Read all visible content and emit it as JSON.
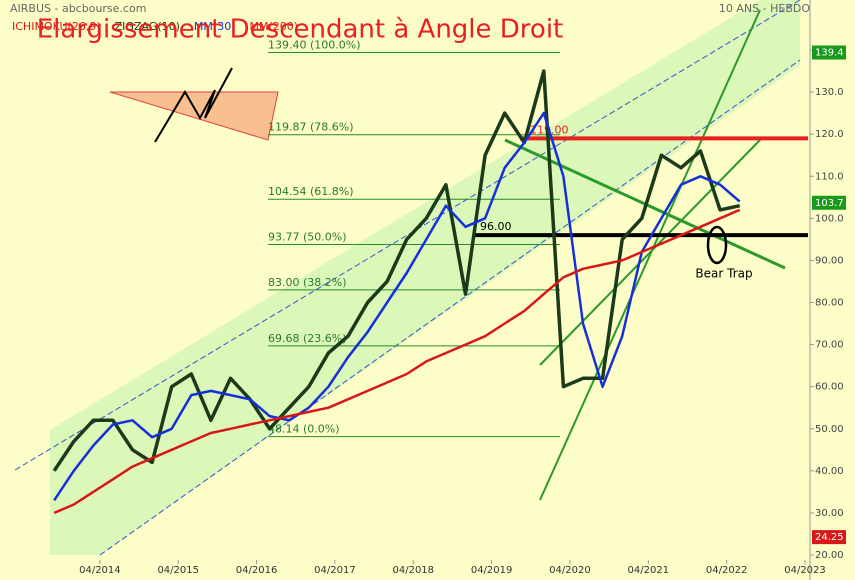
{
  "chart_data": {
    "type": "line",
    "title": "Elargissement Descendant à Angle Droit",
    "source": "AIRBUS - abcbourse.com",
    "period": "10 ANS - HEBDO",
    "background": "#fdfdc8",
    "x": [
      "2013-09",
      "2013-12",
      "2014-03",
      "2014-06",
      "2014-09",
      "2014-12",
      "2015-03",
      "2015-06",
      "2015-09",
      "2015-12",
      "2016-03",
      "2016-06",
      "2016-09",
      "2016-12",
      "2017-03",
      "2017-06",
      "2017-09",
      "2017-12",
      "2018-03",
      "2018-06",
      "2018-09",
      "2018-12",
      "2019-03",
      "2019-06",
      "2019-09",
      "2019-12",
      "2020-03",
      "2020-06",
      "2020-09",
      "2020-12",
      "2021-03",
      "2021-06",
      "2021-09",
      "2021-12",
      "2022-03",
      "2022-06"
    ],
    "xlim": [
      "2013-03",
      "2023-04"
    ],
    "xticks": [
      "04/2014",
      "04/2015",
      "04/2016",
      "04/2017",
      "04/2018",
      "04/2019",
      "04/2020",
      "04/2021",
      "04/2022",
      "04/2023"
    ],
    "ylim": [
      20,
      140
    ],
    "yticks": [
      {
        "value": 20,
        "label": "20.00"
      },
      {
        "value": 30,
        "label": "30.00"
      },
      {
        "value": 40,
        "label": "40.00"
      },
      {
        "value": 50,
        "label": "50.00"
      },
      {
        "value": 60,
        "label": "60.00"
      },
      {
        "value": 70,
        "label": "70.00"
      },
      {
        "value": 80,
        "label": "80.00"
      },
      {
        "value": 90,
        "label": "90.00"
      },
      {
        "value": 100,
        "label": "100.0"
      },
      {
        "value": 110,
        "label": "110.0"
      },
      {
        "value": 120,
        "label": "120.0"
      },
      {
        "value": 130,
        "label": "130.0"
      },
      {
        "value": 140,
        "label": "140.0"
      }
    ],
    "series": [
      {
        "name": "ZIGZAG(10)",
        "color": "#1a3a1a",
        "width": 3.5,
        "values": [
          40,
          47,
          52,
          52,
          45,
          42,
          60,
          63,
          52,
          62,
          57,
          50,
          55,
          60,
          68,
          72,
          80,
          85,
          95,
          100,
          108,
          82,
          115,
          125,
          118,
          135,
          60,
          62,
          62,
          95,
          100,
          115,
          112,
          116,
          102,
          103
        ]
      },
      {
        "name": "MM(30)",
        "color": "#1530d8",
        "width": 2.5,
        "values": [
          33,
          40,
          46,
          51,
          52,
          48,
          50,
          58,
          59,
          58,
          57,
          53,
          52,
          55,
          60,
          67,
          73,
          80,
          87,
          95,
          103,
          98,
          100,
          112,
          118,
          125,
          110,
          75,
          60,
          72,
          92,
          100,
          108,
          110,
          108,
          104
        ]
      },
      {
        "name": "MM(200)",
        "color": "#d81818",
        "width": 2.5,
        "values": [
          30,
          32,
          35,
          38,
          41,
          43,
          45,
          47,
          49,
          50,
          51,
          52,
          53,
          54,
          55,
          57,
          59,
          61,
          63,
          66,
          68,
          70,
          72,
          75,
          78,
          82,
          86,
          88,
          89,
          90,
          92,
          94,
          96,
          98,
          100,
          102
        ]
      }
    ],
    "legend_extra": {
      "name": "ICHIMOKU(26,9)",
      "color": "#d81818"
    },
    "fib_levels": [
      {
        "value": 139.4,
        "label": "139.40  (100.0%)"
      },
      {
        "value": 119.87,
        "label": "119.87  (78.6%)"
      },
      {
        "value": 104.54,
        "label": "104.54  (61.8%)"
      },
      {
        "value": 93.77,
        "label": "93.77  (50.0%)"
      },
      {
        "value": 83.0,
        "label": "83.00  (38.2%)"
      },
      {
        "value": 69.68,
        "label": "69.68  (23.6%)"
      },
      {
        "value": 48.14,
        "label": "48.14  (0.0%)"
      }
    ],
    "levels": [
      {
        "value": 119,
        "label": "119.00",
        "color": "#e82020"
      },
      {
        "value": 96,
        "label": "96.00",
        "color": "#000000"
      }
    ],
    "badges": [
      {
        "value": 139.4,
        "label": "139.4",
        "color": "#1a9a1a"
      },
      {
        "value": 103.7,
        "label": "103.7",
        "color": "#1a9a1a"
      },
      {
        "value": 24.25,
        "label": "24.25",
        "color": "#d81818"
      }
    ],
    "annotation": "Bear Trap"
  }
}
